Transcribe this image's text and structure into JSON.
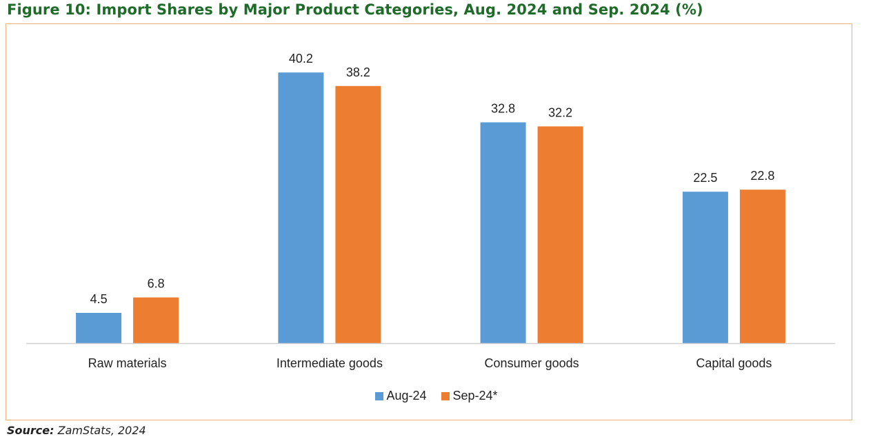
{
  "title": "Figure 10: Import Shares by Major Product Categories, Aug. 2024 and Sep. 2024 (%)",
  "source": {
    "label": "Source:",
    "text": " ZamStats, 2024"
  },
  "chart_data": {
    "type": "bar",
    "categories": [
      "Raw materials",
      "Intermediate goods",
      "Consumer goods",
      "Capital goods"
    ],
    "series": [
      {
        "name": "Aug-24",
        "values": [
          4.5,
          40.2,
          32.8,
          22.5
        ],
        "color": "#5b9bd5"
      },
      {
        "name": "Sep-24*",
        "values": [
          6.8,
          38.2,
          32.2,
          22.8
        ],
        "color": "#ed7d31"
      }
    ],
    "title": "",
    "xlabel": "",
    "ylabel": "",
    "ylim": [
      0,
      45
    ],
    "grid": false,
    "legend": "bottom-center",
    "data_labels": true
  }
}
